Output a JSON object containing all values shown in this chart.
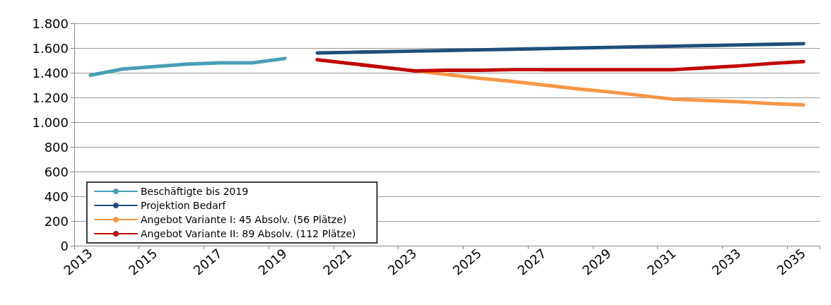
{
  "chart_data": {
    "type": "line",
    "categories": [
      "2013",
      null,
      "2015",
      null,
      "2017",
      null,
      "2019",
      null,
      "2021",
      null,
      "2023",
      null,
      "2025",
      null,
      "2027",
      null,
      "2029",
      null,
      "2031",
      null,
      "2033",
      null,
      "2035"
    ],
    "series": [
      {
        "name": "Beschäftigte bis 2019",
        "color": "#4a9fb5",
        "values": [
          1380,
          1430,
          1450,
          1470,
          1480,
          1480,
          1515,
          null,
          null,
          null,
          null,
          null,
          null,
          null,
          null,
          null,
          null,
          null,
          null,
          null,
          null,
          null,
          null
        ]
      },
      {
        "name": "Projektion Bedarf",
        "color": "#1f4e79",
        "values": [
          null,
          null,
          null,
          null,
          null,
          null,
          null,
          1560,
          1565,
          1570,
          1575,
          1580,
          1585,
          1590,
          1595,
          1600,
          1605,
          1610,
          1615,
          1620,
          1625,
          1630,
          1635
        ]
      },
      {
        "name": "Angebot Variante I: 45 Absolv. (56 Plätze)",
        "color": "#f79646",
        "values": [
          null,
          null,
          null,
          null,
          null,
          null,
          null,
          1505,
          1475,
          1445,
          1415,
          1385,
          1355,
          1330,
          1300,
          1270,
          1245,
          1215,
          1185,
          1175,
          1165,
          1150,
          1140
        ]
      },
      {
        "name": "Angebot Variante II: 89 Absolv. (112 Plätze)",
        "color": "#c00000",
        "values": [
          null,
          null,
          null,
          null,
          null,
          null,
          null,
          1505,
          1475,
          1445,
          1415,
          1420,
          1420,
          1425,
          1425,
          1425,
          1425,
          1425,
          1425,
          1440,
          1455,
          1475,
          1490
        ]
      }
    ],
    "ylim": [
      0,
      1800
    ],
    "yticks": [
      0,
      200,
      400,
      600,
      800,
      {
        "value": 1000,
        "label": "1.000"
      },
      {
        "value": 1200,
        "label": "1.200"
      },
      {
        "value": 1400,
        "label": "1.400"
      },
      {
        "value": 1600,
        "label": "1.600"
      },
      {
        "value": 1800,
        "label": "1.800"
      }
    ],
    "grid": "y",
    "legend": "bottom left",
    "marker": "none",
    "line_style": "solid"
  }
}
